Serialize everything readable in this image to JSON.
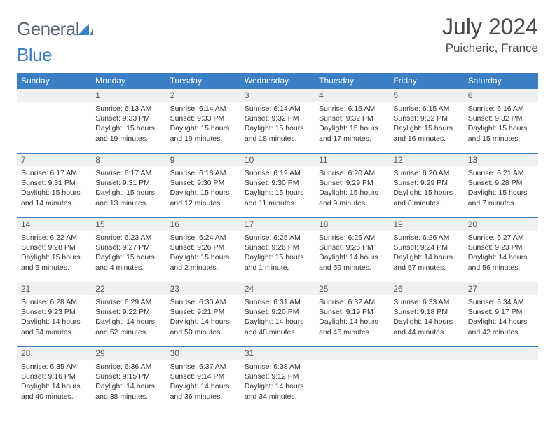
{
  "logo": {
    "text_general": "General",
    "text_blue": "Blue"
  },
  "title": "July 2024",
  "location": "Puicheric, France",
  "colors": {
    "header_bg": "#3b7fc4",
    "header_fg": "#ffffff",
    "daynum_bg": "#eef0f2",
    "row_rule": "#3b7fc4",
    "logo_gray": "#5a6570",
    "logo_blue": "#3b7fc4"
  },
  "weekdays": [
    "Sunday",
    "Monday",
    "Tuesday",
    "Wednesday",
    "Thursday",
    "Friday",
    "Saturday"
  ],
  "weeks": [
    [
      null,
      {
        "n": "1",
        "sr": "Sunrise: 6:13 AM",
        "ss": "Sunset: 9:33 PM",
        "dl": "Daylight: 15 hours and 19 minutes."
      },
      {
        "n": "2",
        "sr": "Sunrise: 6:14 AM",
        "ss": "Sunset: 9:33 PM",
        "dl": "Daylight: 15 hours and 19 minutes."
      },
      {
        "n": "3",
        "sr": "Sunrise: 6:14 AM",
        "ss": "Sunset: 9:32 PM",
        "dl": "Daylight: 15 hours and 18 minutes."
      },
      {
        "n": "4",
        "sr": "Sunrise: 6:15 AM",
        "ss": "Sunset: 9:32 PM",
        "dl": "Daylight: 15 hours and 17 minutes."
      },
      {
        "n": "5",
        "sr": "Sunrise: 6:15 AM",
        "ss": "Sunset: 9:32 PM",
        "dl": "Daylight: 15 hours and 16 minutes."
      },
      {
        "n": "6",
        "sr": "Sunrise: 6:16 AM",
        "ss": "Sunset: 9:32 PM",
        "dl": "Daylight: 15 hours and 15 minutes."
      }
    ],
    [
      {
        "n": "7",
        "sr": "Sunrise: 6:17 AM",
        "ss": "Sunset: 9:31 PM",
        "dl": "Daylight: 15 hours and 14 minutes."
      },
      {
        "n": "8",
        "sr": "Sunrise: 6:17 AM",
        "ss": "Sunset: 9:31 PM",
        "dl": "Daylight: 15 hours and 13 minutes."
      },
      {
        "n": "9",
        "sr": "Sunrise: 6:18 AM",
        "ss": "Sunset: 9:30 PM",
        "dl": "Daylight: 15 hours and 12 minutes."
      },
      {
        "n": "10",
        "sr": "Sunrise: 6:19 AM",
        "ss": "Sunset: 9:30 PM",
        "dl": "Daylight: 15 hours and 11 minutes."
      },
      {
        "n": "11",
        "sr": "Sunrise: 6:20 AM",
        "ss": "Sunset: 9:29 PM",
        "dl": "Daylight: 15 hours and 9 minutes."
      },
      {
        "n": "12",
        "sr": "Sunrise: 6:20 AM",
        "ss": "Sunset: 9:29 PM",
        "dl": "Daylight: 15 hours and 8 minutes."
      },
      {
        "n": "13",
        "sr": "Sunrise: 6:21 AM",
        "ss": "Sunset: 9:28 PM",
        "dl": "Daylight: 15 hours and 7 minutes."
      }
    ],
    [
      {
        "n": "14",
        "sr": "Sunrise: 6:22 AM",
        "ss": "Sunset: 9:28 PM",
        "dl": "Daylight: 15 hours and 5 minutes."
      },
      {
        "n": "15",
        "sr": "Sunrise: 6:23 AM",
        "ss": "Sunset: 9:27 PM",
        "dl": "Daylight: 15 hours and 4 minutes."
      },
      {
        "n": "16",
        "sr": "Sunrise: 6:24 AM",
        "ss": "Sunset: 9:26 PM",
        "dl": "Daylight: 15 hours and 2 minutes."
      },
      {
        "n": "17",
        "sr": "Sunrise: 6:25 AM",
        "ss": "Sunset: 9:26 PM",
        "dl": "Daylight: 15 hours and 1 minute."
      },
      {
        "n": "18",
        "sr": "Sunrise: 6:26 AM",
        "ss": "Sunset: 9:25 PM",
        "dl": "Daylight: 14 hours and 59 minutes."
      },
      {
        "n": "19",
        "sr": "Sunrise: 6:26 AM",
        "ss": "Sunset: 9:24 PM",
        "dl": "Daylight: 14 hours and 57 minutes."
      },
      {
        "n": "20",
        "sr": "Sunrise: 6:27 AM",
        "ss": "Sunset: 9:23 PM",
        "dl": "Daylight: 14 hours and 56 minutes."
      }
    ],
    [
      {
        "n": "21",
        "sr": "Sunrise: 6:28 AM",
        "ss": "Sunset: 9:23 PM",
        "dl": "Daylight: 14 hours and 54 minutes."
      },
      {
        "n": "22",
        "sr": "Sunrise: 6:29 AM",
        "ss": "Sunset: 9:22 PM",
        "dl": "Daylight: 14 hours and 52 minutes."
      },
      {
        "n": "23",
        "sr": "Sunrise: 6:30 AM",
        "ss": "Sunset: 9:21 PM",
        "dl": "Daylight: 14 hours and 50 minutes."
      },
      {
        "n": "24",
        "sr": "Sunrise: 6:31 AM",
        "ss": "Sunset: 9:20 PM",
        "dl": "Daylight: 14 hours and 48 minutes."
      },
      {
        "n": "25",
        "sr": "Sunrise: 6:32 AM",
        "ss": "Sunset: 9:19 PM",
        "dl": "Daylight: 14 hours and 46 minutes."
      },
      {
        "n": "26",
        "sr": "Sunrise: 6:33 AM",
        "ss": "Sunset: 9:18 PM",
        "dl": "Daylight: 14 hours and 44 minutes."
      },
      {
        "n": "27",
        "sr": "Sunrise: 6:34 AM",
        "ss": "Sunset: 9:17 PM",
        "dl": "Daylight: 14 hours and 42 minutes."
      }
    ],
    [
      {
        "n": "28",
        "sr": "Sunrise: 6:35 AM",
        "ss": "Sunset: 9:16 PM",
        "dl": "Daylight: 14 hours and 40 minutes."
      },
      {
        "n": "29",
        "sr": "Sunrise: 6:36 AM",
        "ss": "Sunset: 9:15 PM",
        "dl": "Daylight: 14 hours and 38 minutes."
      },
      {
        "n": "30",
        "sr": "Sunrise: 6:37 AM",
        "ss": "Sunset: 9:14 PM",
        "dl": "Daylight: 14 hours and 36 minutes."
      },
      {
        "n": "31",
        "sr": "Sunrise: 6:38 AM",
        "ss": "Sunset: 9:12 PM",
        "dl": "Daylight: 14 hours and 34 minutes."
      },
      null,
      null,
      null
    ]
  ]
}
